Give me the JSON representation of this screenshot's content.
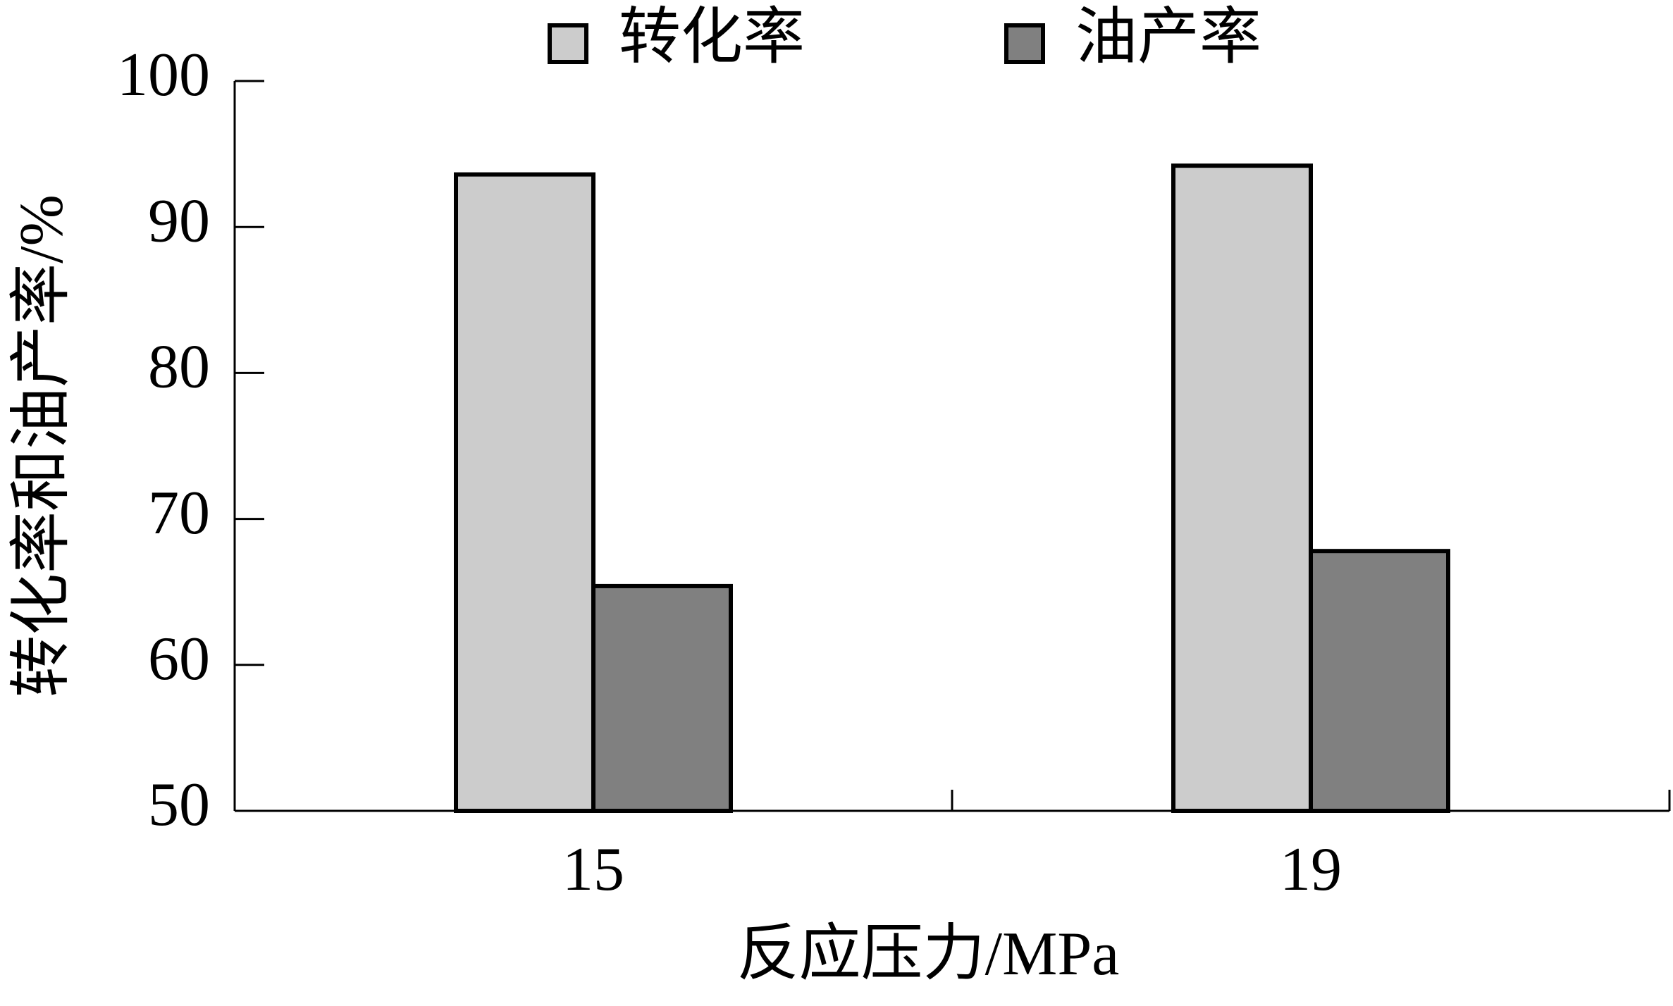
{
  "chart_data": {
    "type": "bar",
    "x_label": "反应压力/MPa",
    "y_label": "转化率和油产率/%",
    "categories": [
      "15",
      "19"
    ],
    "series": [
      {
        "name": "转化率",
        "color": "#cccccc",
        "values": [
          93.6,
          94.2
        ]
      },
      {
        "name": "油产率",
        "color": "#808080",
        "values": [
          65.4,
          67.8
        ]
      }
    ],
    "ylim": [
      50,
      100
    ],
    "yticks": [
      50,
      60,
      70,
      80,
      90,
      100
    ]
  }
}
